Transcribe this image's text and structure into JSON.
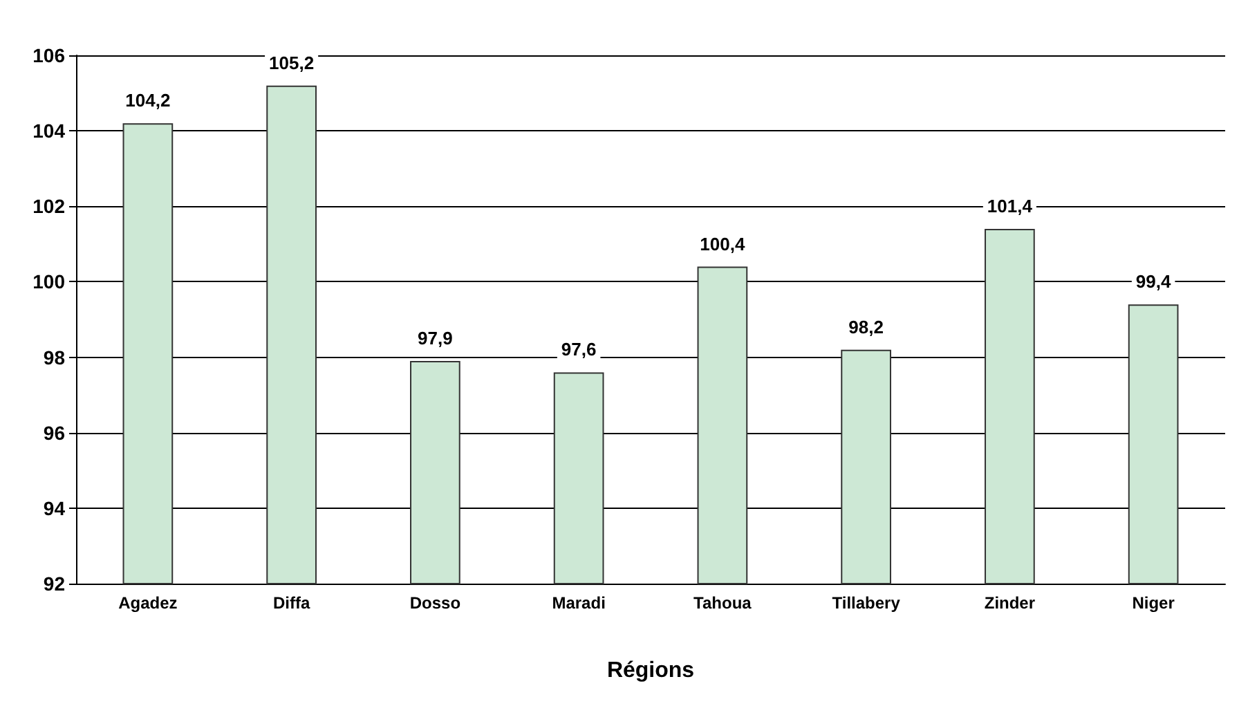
{
  "chart_data": {
    "type": "bar",
    "xlabel": "Régions",
    "categories": [
      "Agadez",
      "Diffa",
      "Dosso",
      "Maradi",
      "Tahoua",
      "Tillabery",
      "Zinder",
      "Niger"
    ],
    "values": [
      104.2,
      105.2,
      97.9,
      97.6,
      100.4,
      98.2,
      101.4,
      99.4
    ],
    "value_labels": [
      "104,2",
      "105,2",
      "97,9",
      "97,6",
      "100,4",
      "98,2",
      "101,4",
      "99,4"
    ],
    "color": "#cde8d5",
    "ylim": [
      92,
      106
    ],
    "yticks": [
      92,
      94,
      96,
      98,
      100,
      102,
      104,
      106
    ],
    "grid": "y"
  }
}
